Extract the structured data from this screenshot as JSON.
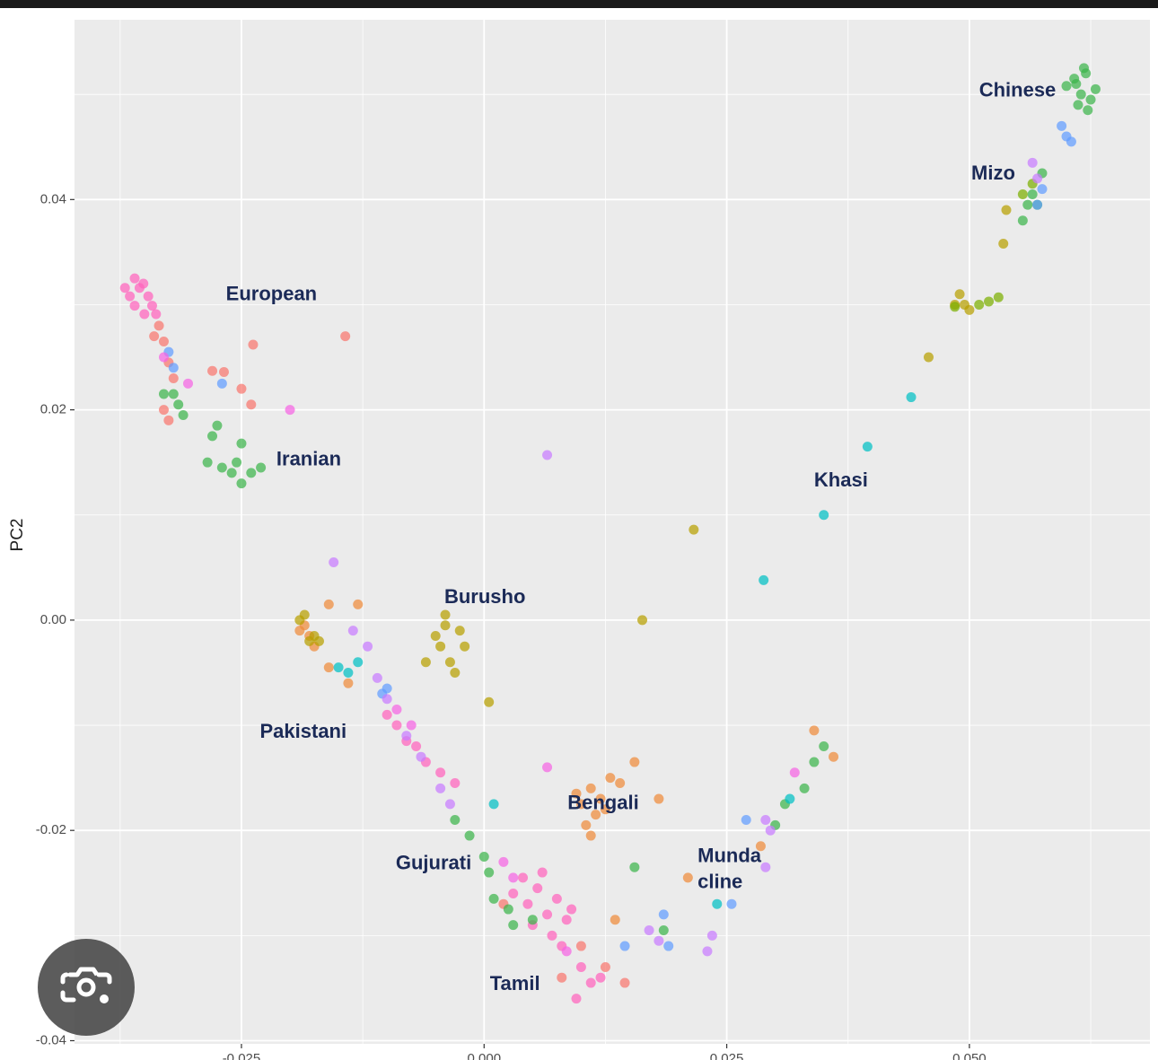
{
  "chart_data": {
    "type": "scatter",
    "ylabel": "PC2",
    "xlim": [
      -0.0422,
      0.0686
    ],
    "ylim": [
      -0.0403,
      0.0571
    ],
    "xticks": [
      -0.025,
      {
        "value": 0,
        "label": "0.000"
      },
      0.025,
      {
        "value": 0.05,
        "label": "0.050"
      }
    ],
    "yticks": [
      -0.04,
      -0.02,
      {
        "value": 0,
        "label": "0.00"
      },
      0.02,
      0.04
    ],
    "grid": true,
    "series": [
      {
        "color": "#ff62bc",
        "x": [
          -0.037,
          -0.0365,
          -0.036,
          -0.0355,
          -0.035,
          -0.0346,
          -0.0342,
          -0.0338,
          -0.036,
          -0.0351,
          0.003,
          0.0045,
          0.0055,
          0.0065,
          0.0075,
          0.005,
          0.0085,
          0.004,
          0.007,
          0.006,
          0.009,
          0.008,
          0.01,
          0.011,
          0.0095,
          0.012,
          -0.01,
          -0.009,
          -0.008,
          -0.007,
          -0.006,
          -0.0045,
          -0.003
        ],
        "y": [
          0.0316,
          0.0308,
          0.0299,
          0.0316,
          0.0291,
          0.0308,
          0.0299,
          0.0291,
          0.0325,
          0.032,
          -0.026,
          -0.027,
          -0.0255,
          -0.028,
          -0.0265,
          -0.029,
          -0.0285,
          -0.0245,
          -0.03,
          -0.024,
          -0.0275,
          -0.031,
          -0.033,
          -0.0345,
          -0.036,
          -0.034,
          -0.009,
          -0.01,
          -0.0115,
          -0.012,
          -0.0135,
          -0.0145,
          -0.0155
        ]
      },
      {
        "color": "#f8766d",
        "x": [
          -0.0335,
          -0.033,
          -0.0325,
          -0.032,
          -0.034,
          -0.028,
          -0.0268,
          -0.025,
          -0.0238,
          -0.0143,
          -0.024,
          -0.0325,
          -0.033,
          0.01,
          0.0125,
          0.0145,
          0.008,
          0.002
        ],
        "y": [
          0.028,
          0.0265,
          0.0245,
          0.023,
          0.027,
          0.0237,
          0.0236,
          0.022,
          0.0262,
          0.027,
          0.0205,
          0.019,
          0.02,
          -0.031,
          -0.033,
          -0.0345,
          -0.034,
          -0.027
        ]
      },
      {
        "color": "#3cb44b",
        "x": [
          -0.032,
          -0.0315,
          -0.033,
          -0.031,
          -0.0275,
          -0.028,
          -0.027,
          -0.026,
          -0.0255,
          -0.025,
          -0.024,
          -0.023,
          -0.0285,
          -0.025,
          0.061,
          0.0615,
          0.062,
          0.0625,
          0.0612,
          0.0618,
          0.063,
          0.0608,
          0.0622,
          0.06,
          0.0565,
          0.056,
          0.057,
          0.0555,
          0.0575,
          -0.003,
          -0.0015,
          0,
          0.0005,
          0.001,
          0.0025,
          0.005,
          0.003,
          0.0155,
          0.0185,
          0.033,
          0.035,
          0.031,
          0.03,
          0.034
        ],
        "y": [
          0.0215,
          0.0205,
          0.0215,
          0.0195,
          0.0185,
          0.0175,
          0.0145,
          0.014,
          0.015,
          0.013,
          0.014,
          0.0145,
          0.015,
          0.0168,
          0.051,
          0.05,
          0.052,
          0.0495,
          0.049,
          0.0525,
          0.0505,
          0.0515,
          0.0485,
          0.0508,
          0.0405,
          0.0395,
          0.0395,
          0.038,
          0.0425,
          -0.019,
          -0.0205,
          -0.0225,
          -0.024,
          -0.0265,
          -0.0275,
          -0.0285,
          -0.029,
          -0.0235,
          -0.0295,
          -0.016,
          -0.012,
          -0.0175,
          -0.0195,
          -0.0135
        ]
      },
      {
        "color": "#ee8a3a",
        "x": [
          0.01,
          0.011,
          0.012,
          0.013,
          0.0115,
          0.0105,
          0.0125,
          0.014,
          0.0095,
          0.011,
          0.0155,
          0.018,
          -0.019,
          -0.018,
          -0.0175,
          -0.0185,
          -0.016,
          -0.014,
          -0.013,
          -0.016,
          0.034,
          0.036,
          0.0285,
          0.021,
          0.0135
        ],
        "y": [
          -0.0175,
          -0.016,
          -0.017,
          -0.015,
          -0.0185,
          -0.0195,
          -0.018,
          -0.0155,
          -0.0165,
          -0.0205,
          -0.0135,
          -0.017,
          -0.001,
          -0.0015,
          -0.0025,
          -0.0005,
          -0.0045,
          -0.006,
          0.0015,
          0.0015,
          -0.0105,
          -0.013,
          -0.0215,
          -0.0245,
          -0.0285
        ]
      },
      {
        "color": "#b79f00",
        "x": [
          -0.0175,
          -0.018,
          -0.0185,
          -0.017,
          -0.019,
          -0.005,
          -0.0045,
          -0.004,
          -0.0035,
          -0.0025,
          -0.004,
          -0.006,
          -0.003,
          -0.002,
          0.0005,
          0.0163,
          0.0216,
          0.0458,
          0.0495,
          0.049,
          0.05,
          0.0485,
          0.0535,
          0.0538
        ],
        "y": [
          -0.0015,
          -0.002,
          0.0005,
          -0.002,
          0,
          -0.0015,
          -0.0025,
          -0.0005,
          -0.004,
          -0.001,
          0.0005,
          -0.004,
          -0.005,
          -0.0025,
          -0.0078,
          0,
          0.0086,
          0.025,
          0.03,
          0.031,
          0.0295,
          0.03,
          0.0358,
          0.039
        ]
      },
      {
        "color": "#7cae00",
        "x": [
          0.051,
          0.052,
          0.053,
          0.0555,
          0.0565,
          0.0485
        ],
        "y": [
          0.03,
          0.0303,
          0.0307,
          0.0405,
          0.0415,
          0.0298
        ]
      },
      {
        "color": "#00bfc4",
        "x": [
          0.044,
          0.0395,
          0.035,
          0.0288,
          -0.015,
          -0.014,
          -0.013,
          0.001,
          0.024,
          0.0315
        ],
        "y": [
          0.0212,
          0.0165,
          0.01,
          0.0038,
          -0.0045,
          -0.005,
          -0.004,
          -0.0175,
          -0.027,
          -0.017
        ]
      },
      {
        "color": "#619cff",
        "x": [
          0.0595,
          0.06,
          0.0605,
          0.0575,
          0.057,
          -0.0325,
          -0.032,
          -0.027,
          -0.0105,
          -0.01,
          0.027,
          0.0255,
          0.0185,
          0.019,
          0.0145
        ],
        "y": [
          0.047,
          0.046,
          0.0455,
          0.041,
          0.0395,
          0.0255,
          0.024,
          0.0225,
          -0.007,
          -0.0065,
          -0.019,
          -0.027,
          -0.028,
          -0.031,
          -0.031
        ]
      },
      {
        "color": "#c77cff",
        "x": [
          -0.0155,
          0.0065,
          0.0565,
          0.057,
          -0.0135,
          -0.012,
          -0.011,
          -0.01,
          -0.008,
          -0.0065,
          -0.0045,
          -0.0035,
          0.017,
          0.018,
          0.0235,
          0.023,
          0.029,
          0.029,
          0.0295
        ],
        "y": [
          0.0055,
          0.0157,
          0.0435,
          0.042,
          -0.001,
          -0.0025,
          -0.0055,
          -0.0075,
          -0.011,
          -0.013,
          -0.016,
          -0.0175,
          -0.0295,
          -0.0305,
          -0.03,
          -0.0315,
          -0.0235,
          -0.019,
          -0.02
        ]
      },
      {
        "color": "#f564e3",
        "x": [
          -0.02,
          -0.0305,
          -0.033,
          0.0065,
          0.032,
          0.002,
          0.003,
          0.0085,
          -0.009,
          -0.0075
        ],
        "y": [
          0.02,
          0.0225,
          0.025,
          -0.014,
          -0.0145,
          -0.023,
          -0.0245,
          -0.0315,
          -0.0085,
          -0.01
        ]
      }
    ],
    "annotations": [
      {
        "text": [
          "European"
        ],
        "x": -0.0266,
        "y": 0.0309
      },
      {
        "text": [
          "Iranian"
        ],
        "x": -0.0214,
        "y": 0.0152
      },
      {
        "text": [
          "Burusho"
        ],
        "x": -0.0041,
        "y": 0.0021
      },
      {
        "text": [
          "Pakistani"
        ],
        "x": -0.0231,
        "y": -0.0107
      },
      {
        "text": [
          "Bengali"
        ],
        "x": 0.0086,
        "y": -0.0175
      },
      {
        "text": [
          "Gujurati"
        ],
        "x": -0.0091,
        "y": -0.0232
      },
      {
        "text": [
          "Munda",
          "cline"
        ],
        "x": 0.022,
        "y": -0.0225
      },
      {
        "text": [
          "Tamil"
        ],
        "x": 0.0006,
        "y": -0.0347
      },
      {
        "text": [
          "Khasi"
        ],
        "x": 0.034,
        "y": 0.0132
      },
      {
        "text": [
          "Mizo"
        ],
        "x": 0.0502,
        "y": 0.0424
      },
      {
        "text": [
          "Chinese"
        ],
        "x": 0.051,
        "y": 0.0503
      }
    ]
  }
}
